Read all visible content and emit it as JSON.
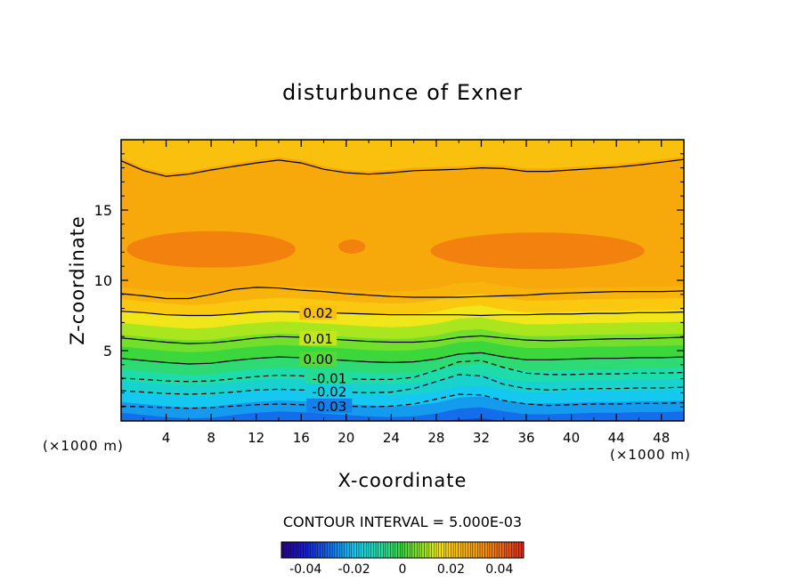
{
  "chart_data": {
    "type": "heatmap",
    "title": "disturbunce of Exner",
    "xlabel": "X-coordinate",
    "ylabel": "Z-coordinate",
    "x_unit": "(×1000 m)",
    "y_unit": "(×1000 m)",
    "xlim": [
      0,
      50
    ],
    "ylim": [
      0,
      20
    ],
    "x_ticks": [
      4,
      8,
      12,
      16,
      20,
      24,
      28,
      32,
      36,
      40,
      44,
      48
    ],
    "y_ticks": [
      5,
      10,
      15
    ],
    "contour_interval_label": "CONTOUR INTERVAL = 5.000E-03",
    "contour_labels": [
      {
        "text": "0.02",
        "x": 17.5,
        "value": 0.02
      },
      {
        "text": "0.01",
        "x": 17.5,
        "value": 0.01
      },
      {
        "text": "0.00",
        "x": 17.5,
        "value": 0.0
      },
      {
        "text": "-0.01",
        "x": 18.5,
        "value": -0.01
      },
      {
        "text": "-0.02",
        "x": 18.5,
        "value": -0.02
      },
      {
        "text": "-0.03",
        "x": 18.5,
        "value": -0.03
      }
    ],
    "solid_contours": [
      {
        "value": 0.02,
        "z": [
          9.05,
          8.9,
          8.7,
          8.7,
          9.0,
          9.35,
          9.5,
          9.45,
          9.3,
          9.2,
          9.05,
          8.95,
          8.85,
          8.8,
          8.8,
          8.8,
          8.85,
          8.9,
          8.95,
          9.05,
          9.1,
          9.15,
          9.2,
          9.2,
          9.2,
          9.25
        ]
      },
      {
        "value": 0.02,
        "z": [
          7.8,
          7.7,
          7.55,
          7.5,
          7.5,
          7.6,
          7.75,
          7.8,
          7.75,
          7.7,
          7.65,
          7.6,
          7.55,
          7.55,
          7.55,
          7.55,
          7.5,
          7.55,
          7.55,
          7.6,
          7.6,
          7.65,
          7.65,
          7.7,
          7.7,
          7.75
        ]
      },
      {
        "value": 0.01,
        "z": [
          5.9,
          5.75,
          5.6,
          5.5,
          5.55,
          5.7,
          5.9,
          6.0,
          5.95,
          5.85,
          5.75,
          5.65,
          5.6,
          5.6,
          5.7,
          5.95,
          6.05,
          5.9,
          5.75,
          5.7,
          5.75,
          5.8,
          5.85,
          5.85,
          5.9,
          5.95
        ]
      },
      {
        "value": 0.0,
        "z": [
          4.45,
          4.3,
          4.15,
          4.05,
          4.1,
          4.3,
          4.45,
          4.55,
          4.5,
          4.4,
          4.3,
          4.2,
          4.15,
          4.2,
          4.4,
          4.75,
          4.85,
          4.55,
          4.35,
          4.35,
          4.4,
          4.45,
          4.45,
          4.5,
          4.5,
          4.55
        ]
      },
      {
        "value": 0.02,
        "z": [
          18.5,
          17.8,
          17.4,
          17.55,
          17.85,
          18.1,
          18.35,
          18.55,
          18.35,
          17.9,
          17.65,
          17.55,
          17.65,
          17.8,
          17.85,
          17.9,
          18.0,
          17.95,
          17.75,
          17.75,
          17.85,
          17.95,
          18.05,
          18.2,
          18.4,
          18.6
        ]
      }
    ],
    "dashed_contours": [
      {
        "value": -0.01,
        "z": [
          3.05,
          2.95,
          2.85,
          2.8,
          2.85,
          3.0,
          3.15,
          3.25,
          3.2,
          3.1,
          3.0,
          2.95,
          2.95,
          3.1,
          3.6,
          4.2,
          4.3,
          3.8,
          3.4,
          3.3,
          3.3,
          3.35,
          3.35,
          3.4,
          3.4,
          3.45
        ]
      },
      {
        "value": -0.02,
        "z": [
          2.15,
          2.05,
          1.95,
          1.9,
          1.95,
          2.05,
          2.2,
          2.25,
          2.2,
          2.15,
          2.05,
          2.0,
          2.05,
          2.3,
          2.8,
          3.3,
          3.2,
          2.6,
          2.3,
          2.2,
          2.25,
          2.3,
          2.3,
          2.35,
          2.35,
          2.4
        ]
      },
      {
        "value": -0.03,
        "z": [
          1.05,
          1.0,
          0.95,
          0.9,
          0.95,
          1.05,
          1.15,
          1.2,
          1.15,
          1.1,
          1.05,
          1.0,
          1.05,
          1.2,
          1.55,
          1.9,
          1.85,
          1.45,
          1.2,
          1.1,
          1.15,
          1.2,
          1.2,
          1.25,
          1.25,
          1.3
        ]
      }
    ],
    "colorbar": {
      "tick_labels": [
        "-0.04",
        "-0.02",
        "0",
        "0.02",
        "0.04"
      ],
      "tick_values": [
        -0.04,
        -0.02,
        0,
        0.02,
        0.04
      ],
      "range": [
        -0.05,
        0.05
      ]
    },
    "colors": {
      "background": "#ffffff",
      "frame": "#000000",
      "low": "#1f2fcf",
      "cyan": "#19e0f0",
      "green": "#39d64a",
      "yellow": "#f0e21e",
      "orange": "#f6a10a",
      "high": "#f08a10"
    }
  }
}
